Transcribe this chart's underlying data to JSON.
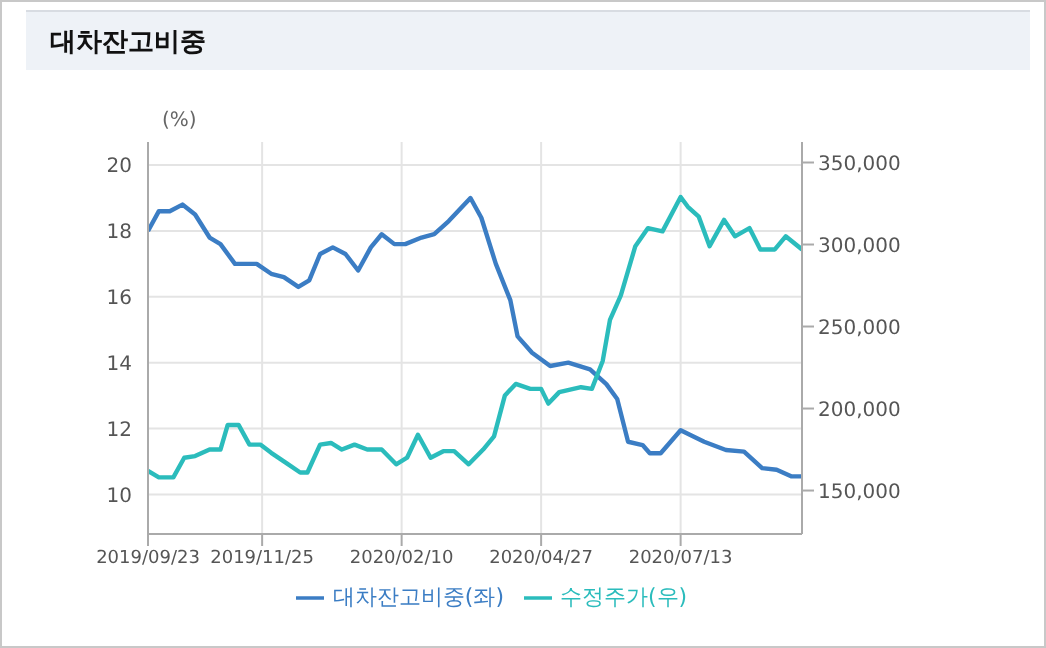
{
  "chart_data": {
    "type": "line",
    "title": "대차잔고비중",
    "ylabel": "(%)",
    "grid": true,
    "legend": "bottom",
    "marker": "none",
    "line_style": "solid",
    "xlim": [
      "2019-09-23",
      "2020-09-18"
    ],
    "xticks": [
      {
        "value": "2019-09-23",
        "label": "2019/09/23"
      },
      {
        "value": "2019-11-25",
        "label": "2019/11/25"
      },
      {
        "value": "2020-02-10",
        "label": "2020/02/10"
      },
      {
        "value": "2020-04-27",
        "label": "2020/04/27"
      },
      {
        "value": "2020-07-13",
        "label": "2020/07/13"
      }
    ],
    "ylim": [
      8.8,
      20.7
    ],
    "yticks": [
      10,
      12,
      14,
      16,
      18,
      20
    ],
    "y2lim": [
      123500,
      362500
    ],
    "y2ticks": [
      {
        "value": 150000,
        "label": "150,000"
      },
      {
        "value": 200000,
        "label": "200,000"
      },
      {
        "value": 250000,
        "label": "250,000"
      },
      {
        "value": 300000,
        "label": "300,000"
      },
      {
        "value": 350000,
        "label": "350,000"
      }
    ],
    "series": [
      {
        "name": "대차잔고비중(좌)",
        "color": "#3b7dc4",
        "x": [
          "2019-09-23",
          "2019-09-29",
          "2019-10-05",
          "2019-10-12",
          "2019-10-19",
          "2019-10-27",
          "2019-11-02",
          "2019-11-10",
          "2019-11-22",
          "2019-11-30",
          "2019-12-07",
          "2019-12-15",
          "2019-12-21",
          "2019-12-27",
          "2020-01-03",
          "2020-01-10",
          "2020-01-17",
          "2020-01-24",
          "2020-01-30",
          "2020-02-06",
          "2020-02-12",
          "2020-02-21",
          "2020-02-28",
          "2020-03-07",
          "2020-03-19",
          "2020-03-25",
          "2020-04-02",
          "2020-04-10",
          "2020-04-14",
          "2020-04-22",
          "2020-05-02",
          "2020-05-12",
          "2020-05-24",
          "2020-06-02",
          "2020-06-08",
          "2020-06-14",
          "2020-06-22",
          "2020-06-26",
          "2020-07-02",
          "2020-07-13",
          "2020-07-26",
          "2020-08-07",
          "2020-08-17",
          "2020-08-27",
          "2020-09-04",
          "2020-09-12",
          "2020-09-18"
        ],
        "values": [
          18.0,
          18.6,
          18.6,
          18.8,
          18.5,
          17.8,
          17.6,
          17.0,
          17.0,
          16.7,
          16.6,
          16.3,
          16.5,
          17.3,
          17.5,
          17.3,
          16.8,
          17.5,
          17.9,
          17.6,
          17.6,
          17.8,
          17.9,
          18.3,
          19.0,
          18.4,
          17.0,
          15.9,
          14.8,
          14.3,
          13.9,
          14.0,
          13.8,
          13.35,
          12.9,
          11.6,
          11.5,
          11.25,
          11.25,
          11.95,
          11.6,
          11.35,
          11.3,
          10.8,
          10.75,
          10.55,
          10.55
        ]
      },
      {
        "name": "수정주가(우)",
        "color": "#2bbcbc",
        "axis": "y2",
        "x": [
          "2019-09-23",
          "2019-09-29",
          "2019-10-07",
          "2019-10-13",
          "2019-10-19",
          "2019-10-27",
          "2019-11-02",
          "2019-11-06",
          "2019-11-12",
          "2019-11-18",
          "2019-11-24",
          "2019-11-30",
          "2019-12-08",
          "2019-12-16",
          "2019-12-20",
          "2019-12-27",
          "2020-01-02",
          "2020-01-08",
          "2020-01-15",
          "2020-01-22",
          "2020-01-30",
          "2020-02-07",
          "2020-02-13",
          "2020-02-19",
          "2020-02-26",
          "2020-03-04",
          "2020-03-10",
          "2020-03-18",
          "2020-03-26",
          "2020-04-01",
          "2020-04-07",
          "2020-04-13",
          "2020-04-21",
          "2020-04-27",
          "2020-05-01",
          "2020-05-07",
          "2020-05-19",
          "2020-05-25",
          "2020-05-31",
          "2020-06-04",
          "2020-06-10",
          "2020-06-18",
          "2020-06-25",
          "2020-07-03",
          "2020-07-13",
          "2020-07-17",
          "2020-07-23",
          "2020-07-29",
          "2020-08-06",
          "2020-08-12",
          "2020-08-20",
          "2020-08-26",
          "2020-09-03",
          "2020-09-09",
          "2020-09-18"
        ],
        "values": [
          162000,
          158000,
          158000,
          170000,
          171000,
          175000,
          175000,
          190000,
          190000,
          178000,
          178000,
          173000,
          167000,
          161000,
          161000,
          178000,
          179000,
          175000,
          178000,
          175000,
          175000,
          166000,
          170000,
          184000,
          170000,
          174000,
          174000,
          166000,
          175000,
          183000,
          208000,
          215000,
          212000,
          212000,
          203000,
          210000,
          213000,
          212000,
          229000,
          254000,
          269000,
          299000,
          310000,
          308000,
          329000,
          323000,
          317000,
          299000,
          315000,
          305000,
          310000,
          297000,
          297000,
          305000,
          297000
        ]
      }
    ]
  }
}
